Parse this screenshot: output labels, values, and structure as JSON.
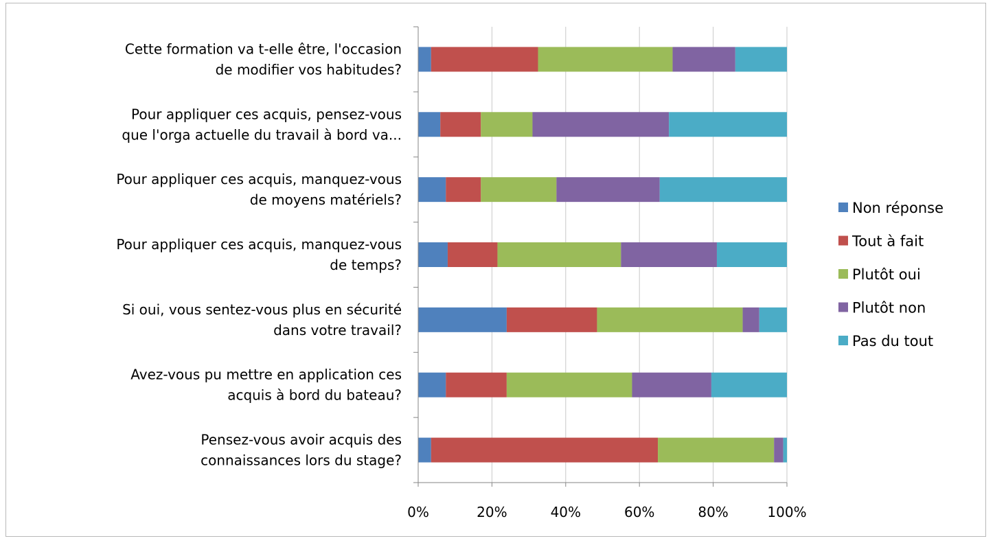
{
  "chart_data": {
    "type": "bar",
    "orientation": "horizontal",
    "stacked": "percent",
    "categories": [
      [
        "Cette formation va t-elle être, l'occasion",
        "de modifier vos habitudes?"
      ],
      [
        "Pour appliquer ces acquis, pensez-vous",
        "que l'orga actuelle du travail à bord va..."
      ],
      [
        "Pour appliquer ces acquis, manquez-vous",
        "de moyens matériels?"
      ],
      [
        "Pour appliquer ces acquis, manquez-vous",
        "de temps?"
      ],
      [
        "Si oui, vous sentez-vous plus en sécurité",
        "dans votre travail?"
      ],
      [
        "Avez-vous pu mettre en application ces",
        "acquis à bord du bateau?"
      ],
      [
        "Pensez-vous avoir acquis des",
        "connaissances lors du stage?"
      ]
    ],
    "series": [
      {
        "name": "Non réponse",
        "color": "#4f81bd",
        "values": [
          3.5,
          6,
          7.5,
          8,
          24,
          7.5,
          3.5
        ]
      },
      {
        "name": "Tout à fait",
        "color": "#c0504d",
        "values": [
          29,
          11,
          9.5,
          13.5,
          24.5,
          16.5,
          61.5
        ]
      },
      {
        "name": "Plutôt oui",
        "color": "#9bbb59",
        "values": [
          36.5,
          14,
          20.5,
          33.5,
          39.5,
          34,
          31.5
        ]
      },
      {
        "name": "Plutôt non",
        "color": "#8064a2",
        "values": [
          17,
          37,
          28,
          26,
          4.5,
          21.5,
          2.5
        ]
      },
      {
        "name": "Pas du tout",
        "color": "#4bacc6",
        "values": [
          14,
          32,
          34.5,
          19,
          7.5,
          20.5,
          1
        ]
      }
    ],
    "x_ticks": [
      "0%",
      "20%",
      "40%",
      "60%",
      "80%",
      "100%"
    ],
    "xlim": [
      0,
      100
    ],
    "grid": "vertical",
    "legend": "right",
    "title": "",
    "xlabel": "",
    "ylabel": ""
  }
}
